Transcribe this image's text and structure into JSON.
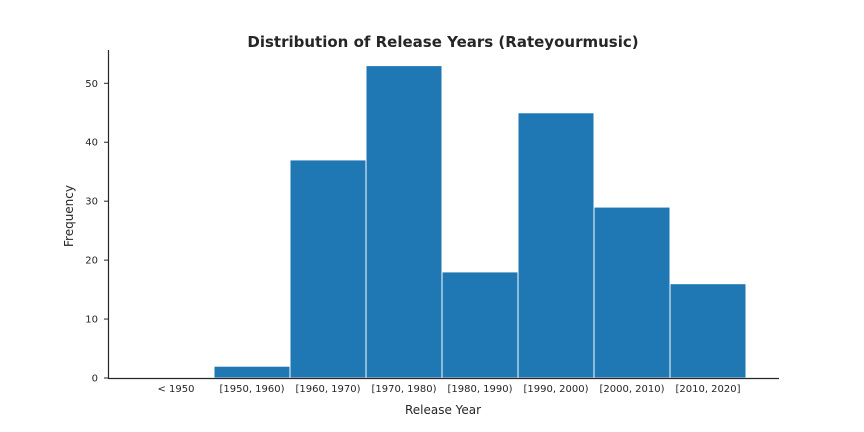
{
  "chart_data": {
    "type": "bar",
    "title": "Distribution of Release Years (Rateyourmusic)",
    "xlabel": "Release Year",
    "ylabel": "Frequency",
    "categories": [
      "< 1950",
      "[1950, 1960)",
      "[1960, 1970)",
      "[1970, 1980)",
      "[1980, 1990)",
      "[1990, 2000)",
      "[2000, 2010)",
      "[2010, 2020]"
    ],
    "values": [
      0,
      2,
      37,
      53,
      18,
      45,
      29,
      16
    ],
    "yticks": [
      0,
      10,
      20,
      30,
      40,
      50
    ],
    "ylim": [
      0,
      55.65
    ],
    "grid": false,
    "bar_color": "#1f77b4"
  }
}
